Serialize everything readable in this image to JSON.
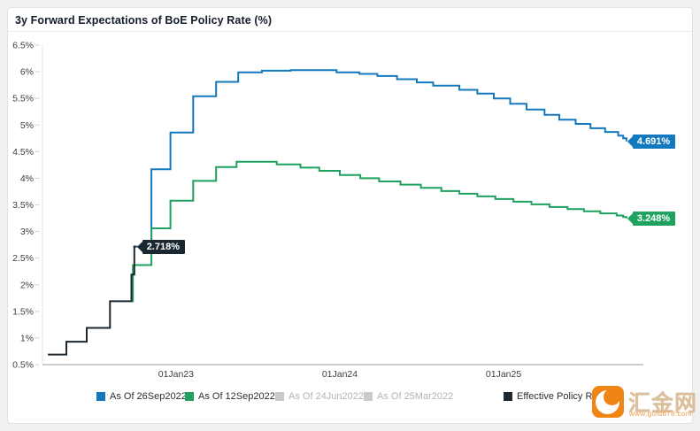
{
  "header": {
    "title": "3y Forward Expectations of BoE Policy Rate (%)"
  },
  "watermark": {
    "brand": "汇金网",
    "url_text": "www.gold678.com"
  },
  "colors": {
    "blue": "#1478be",
    "green": "#1fa15f",
    "dark": "#1b2832",
    "muted_swatch": "#cbcbcb",
    "axis_line": "#9b9b9b",
    "grid": "#e0e0e0"
  },
  "chart_data": {
    "type": "line",
    "step": true,
    "title": "3y Forward Expectations of BoE Policy Rate (%)",
    "xlabel": "",
    "ylabel": "",
    "grid": false,
    "legend_position": "bottom",
    "xlim": [
      2022.185,
      2025.81
    ],
    "ylim": [
      0.5,
      6.5
    ],
    "x_ticks": [
      {
        "t": 2023.0,
        "label": "01Jan23"
      },
      {
        "t": 2024.0,
        "label": "01Jan24"
      },
      {
        "t": 2025.0,
        "label": "01Jan25"
      }
    ],
    "y_ticks": [
      {
        "v": 6.5,
        "label": "6.5%"
      },
      {
        "v": 6.0,
        "label": "6%"
      },
      {
        "v": 5.5,
        "label": "5.5%"
      },
      {
        "v": 5.0,
        "label": "5%"
      },
      {
        "v": 4.5,
        "label": "4.5%"
      },
      {
        "v": 4.0,
        "label": "4%"
      },
      {
        "v": 3.5,
        "label": "3.5%"
      },
      {
        "v": 3.0,
        "label": "3%"
      },
      {
        "v": 2.5,
        "label": "2.5%"
      },
      {
        "v": 2.0,
        "label": "2%"
      },
      {
        "v": 1.5,
        "label": "1.5%"
      },
      {
        "v": 1.0,
        "label": "1%"
      },
      {
        "v": 0.5,
        "label": "0.5%"
      }
    ],
    "series": [
      {
        "name": "As Of 26Sep2022",
        "color": "#1478be",
        "visible": true,
        "end_label": "4.691%",
        "points": [
          [
            2022.74,
            2.718
          ],
          [
            2022.85,
            4.17
          ],
          [
            2022.966,
            4.86
          ],
          [
            2023.105,
            5.54
          ],
          [
            2023.245,
            5.81
          ],
          [
            2023.38,
            5.99
          ],
          [
            2023.525,
            6.02
          ],
          [
            2023.7,
            6.03
          ],
          [
            2023.98,
            5.99
          ],
          [
            2024.12,
            5.96
          ],
          [
            2024.23,
            5.92
          ],
          [
            2024.35,
            5.86
          ],
          [
            2024.47,
            5.8
          ],
          [
            2024.57,
            5.74
          ],
          [
            2024.73,
            5.66
          ],
          [
            2024.84,
            5.59
          ],
          [
            2024.94,
            5.5
          ],
          [
            2025.04,
            5.4
          ],
          [
            2025.14,
            5.29
          ],
          [
            2025.25,
            5.19
          ],
          [
            2025.34,
            5.1
          ],
          [
            2025.44,
            5.02
          ],
          [
            2025.53,
            4.94
          ],
          [
            2025.62,
            4.87
          ],
          [
            2025.7,
            4.8
          ],
          [
            2025.73,
            4.75
          ],
          [
            2025.75,
            4.691
          ]
        ]
      },
      {
        "name": "As Of 12Sep2022",
        "color": "#1fa15f",
        "visible": true,
        "end_label": "3.248%",
        "points": [
          [
            2022.728,
            1.69
          ],
          [
            2022.737,
            2.37
          ],
          [
            2022.85,
            3.06
          ],
          [
            2022.966,
            3.58
          ],
          [
            2023.105,
            3.95
          ],
          [
            2023.245,
            4.21
          ],
          [
            2023.37,
            4.31
          ],
          [
            2023.615,
            4.26
          ],
          [
            2023.76,
            4.2
          ],
          [
            2023.875,
            4.14
          ],
          [
            2024.0,
            4.06
          ],
          [
            2024.125,
            4.0
          ],
          [
            2024.24,
            3.94
          ],
          [
            2024.37,
            3.88
          ],
          [
            2024.495,
            3.82
          ],
          [
            2024.62,
            3.76
          ],
          [
            2024.73,
            3.71
          ],
          [
            2024.84,
            3.66
          ],
          [
            2024.95,
            3.61
          ],
          [
            2025.06,
            3.56
          ],
          [
            2025.17,
            3.51
          ],
          [
            2025.28,
            3.46
          ],
          [
            2025.39,
            3.42
          ],
          [
            2025.49,
            3.38
          ],
          [
            2025.59,
            3.34
          ],
          [
            2025.69,
            3.3
          ],
          [
            2025.73,
            3.27
          ],
          [
            2025.75,
            3.248
          ]
        ]
      },
      {
        "name": "As Of 24Jun2022",
        "color": "#cbcbcb",
        "visible": false,
        "points": []
      },
      {
        "name": "As Of 25Mar2022",
        "color": "#cbcbcb",
        "visible": false,
        "points": []
      },
      {
        "name": "Effective Policy Rate",
        "color": "#1b2832",
        "visible": true,
        "end_label": "2.718%",
        "points": [
          [
            2022.218,
            0.69
          ],
          [
            2022.331,
            0.93
          ],
          [
            2022.455,
            1.19
          ],
          [
            2022.597,
            1.69
          ],
          [
            2022.728,
            2.19
          ],
          [
            2022.746,
            2.718
          ],
          [
            2022.756,
            2.718
          ]
        ]
      }
    ]
  }
}
